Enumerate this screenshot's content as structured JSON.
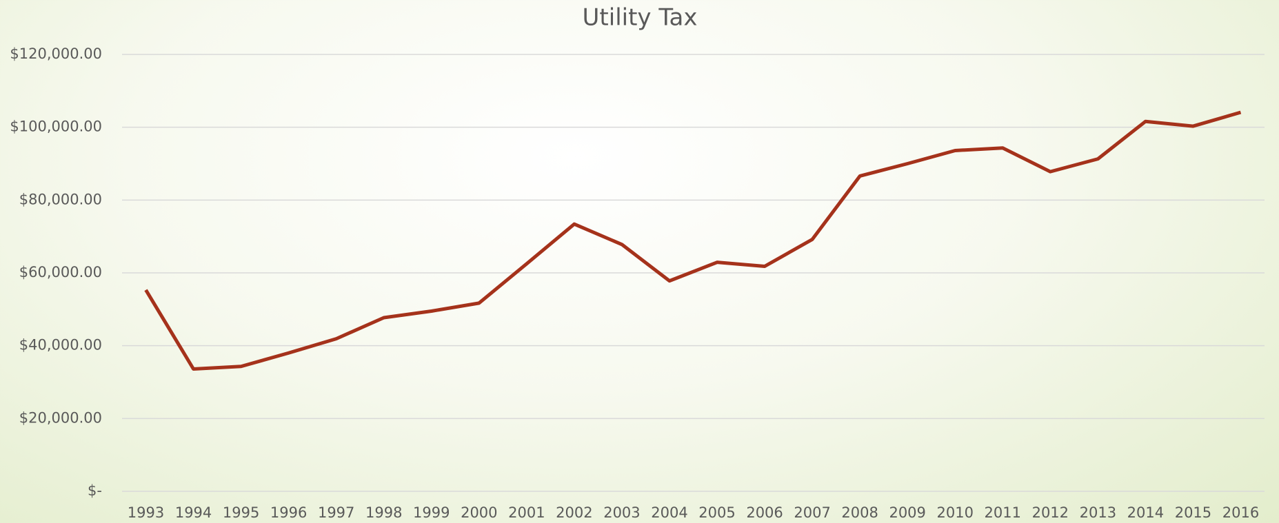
{
  "chart_data": {
    "type": "line",
    "title": "Utility Tax",
    "categories": [
      "1993",
      "1994",
      "1995",
      "1996",
      "1997",
      "1998",
      "1999",
      "2000",
      "2001",
      "2002",
      "2003",
      "2004",
      "2005",
      "2006",
      "2007",
      "2008",
      "2009",
      "2010",
      "2011",
      "2012",
      "2013",
      "2014",
      "2015",
      "2016"
    ],
    "series": [
      {
        "name": "Utility Tax",
        "color": "#a5321b",
        "values": [
          55300,
          33600,
          34300,
          38000,
          41900,
          47700,
          49500,
          51700,
          62500,
          73400,
          67800,
          57800,
          62900,
          61800,
          69200,
          86600,
          90000,
          93600,
          94300,
          87800,
          91300,
          101600,
          100300,
          104100
        ]
      }
    ],
    "ylim": [
      0,
      120000
    ],
    "yticks": [
      {
        "value": 0,
        "label": "$-"
      },
      {
        "value": 20000,
        "label": "$20,000.00"
      },
      {
        "value": 40000,
        "label": "$40,000.00"
      },
      {
        "value": 60000,
        "label": "$60,000.00"
      },
      {
        "value": 80000,
        "label": "$80,000.00"
      },
      {
        "value": 100000,
        "label": "$100,000.00"
      },
      {
        "value": 120000,
        "label": "$120,000.00"
      }
    ],
    "grid": true
  }
}
